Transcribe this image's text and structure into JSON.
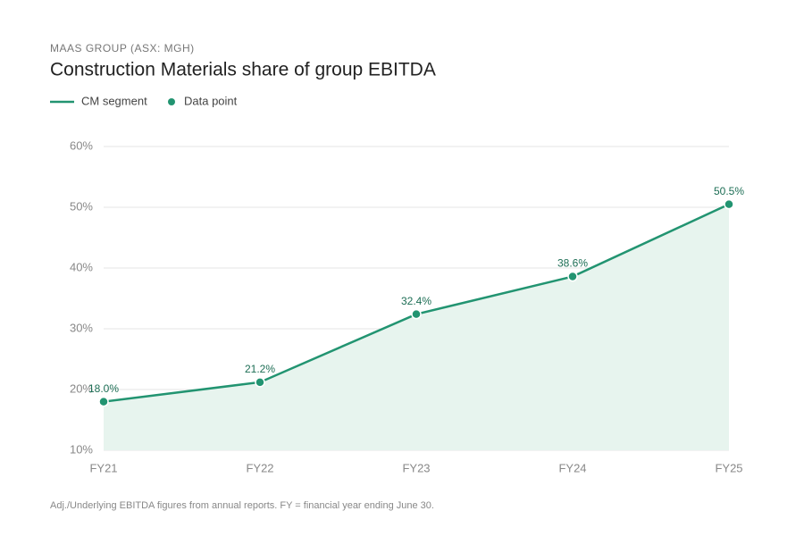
{
  "chart_data": {
    "type": "line",
    "subtitle": "MAAS GROUP (ASX: MGH)",
    "title": "Construction Materials share of group EBITDA",
    "categories": [
      "FY21",
      "FY22",
      "FY23",
      "FY24",
      "FY25"
    ],
    "series": [
      {
        "name": "CM segment",
        "color": "#229471",
        "values": [
          18.0,
          21.2,
          32.4,
          38.6,
          50.5
        ],
        "value_labels": [
          "18.0%",
          "21.2%",
          "32.4%",
          "38.6%",
          "50.5%"
        ]
      }
    ],
    "marker_legend": "Data point",
    "area_color": "#e7f4ee",
    "ylim": [
      10,
      60
    ],
    "yticks": [
      {
        "value": 10,
        "label": "10%"
      },
      {
        "value": 20,
        "label": "20%"
      },
      {
        "value": 30,
        "label": "30%"
      },
      {
        "value": 40,
        "label": "40%"
      },
      {
        "value": 50,
        "label": "50%"
      },
      {
        "value": 60,
        "label": "60%"
      }
    ],
    "grid": true,
    "note": "Adj./Underlying EBITDA figures from annual reports. FY = financial year ending June 30."
  }
}
